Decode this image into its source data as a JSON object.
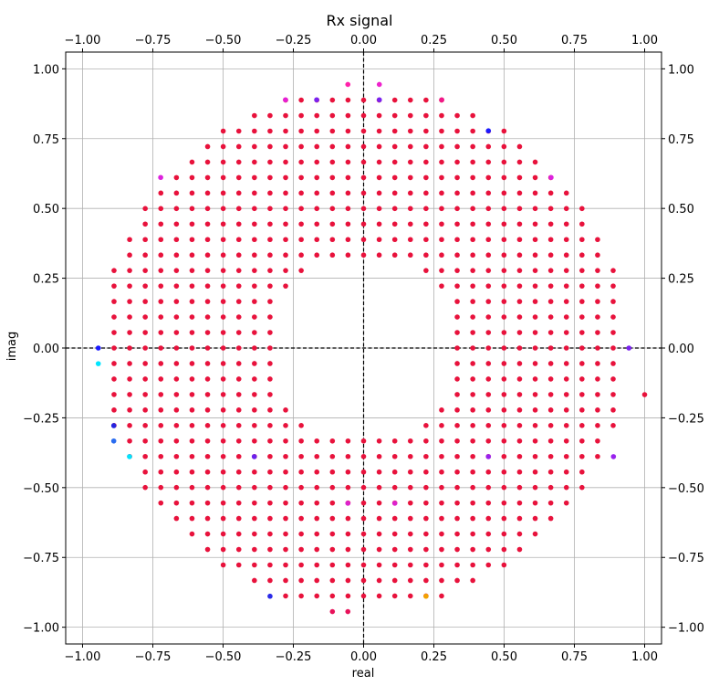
{
  "chart_data": {
    "type": "scatter",
    "title": "Rx signal",
    "xlabel": "real",
    "ylabel": "imag",
    "xlim": [
      -1.06,
      1.06
    ],
    "ylim": [
      -1.06,
      1.06
    ],
    "x_ticks": [
      -1.0,
      -0.75,
      -0.5,
      -0.25,
      0.0,
      0.25,
      0.5,
      0.75,
      1.0
    ],
    "y_ticks": [
      -1.0,
      -0.75,
      -0.5,
      -0.25,
      0.0,
      0.25,
      0.5,
      0.75,
      1.0
    ],
    "x_tick_labels": [
      "−1.00",
      "−0.75",
      "−0.50",
      "−0.25",
      "0.00",
      "0.25",
      "0.50",
      "0.75",
      "1.00"
    ],
    "y_tick_labels": [
      "−1.00",
      "−0.75",
      "−0.50",
      "−0.25",
      "0.00",
      "0.25",
      "0.50",
      "0.75",
      "1.00"
    ],
    "ticks_on_all_sides": true,
    "grid": true,
    "reference_lines": [
      {
        "orientation": "vertical",
        "value": 0.0,
        "style": "dashed",
        "color": "#000000"
      },
      {
        "orientation": "horizontal",
        "value": 0.0,
        "style": "dashed",
        "color": "#000000"
      }
    ],
    "grid_spacing": 0.0555,
    "ring": {
      "inner_radius": 0.33,
      "outer_radius": 0.94
    },
    "point_color_main": "#e8123c",
    "points": [
      {
        "x": -0.944,
        "y": 0.0,
        "color": "#1a1aff"
      },
      {
        "x": -0.944,
        "y": -0.056,
        "color": "#00e5ff"
      },
      {
        "x": -0.889,
        "y": -0.278,
        "color": "#2424e0"
      },
      {
        "x": -0.889,
        "y": -0.333,
        "color": "#2a6cf0"
      },
      {
        "x": -0.833,
        "y": -0.389,
        "color": "#00e5ff"
      },
      {
        "x": -0.333,
        "y": -0.889,
        "color": "#2a2ae8"
      },
      {
        "x": 0.222,
        "y": -0.889,
        "color": "#f2a200"
      },
      {
        "x": 0.444,
        "y": 0.778,
        "color": "#1a1aff"
      },
      {
        "x": -0.167,
        "y": 0.889,
        "color": "#7a22f0"
      },
      {
        "x": 0.056,
        "y": 0.889,
        "color": "#7a22f0"
      },
      {
        "x": 0.444,
        "y": -0.389,
        "color": "#9922ee"
      },
      {
        "x": -0.389,
        "y": -0.389,
        "color": "#6a22ee"
      },
      {
        "x": -0.056,
        "y": 0.944,
        "color": "#ff22aa"
      },
      {
        "x": 0.056,
        "y": 0.944,
        "color": "#ee22cc"
      },
      {
        "x": -0.278,
        "y": 0.889,
        "color": "#e61fd4"
      },
      {
        "x": 0.278,
        "y": 0.889,
        "color": "#f01888"
      },
      {
        "x": -0.111,
        "y": -0.944,
        "color": "#e8125a"
      },
      {
        "x": -0.056,
        "y": -0.944,
        "color": "#e8125a"
      },
      {
        "x": 1.0,
        "y": -0.167,
        "color": "#e8123c"
      },
      {
        "x": 0.944,
        "y": 0.0,
        "color": "#7a22f0"
      },
      {
        "x": -0.056,
        "y": -0.556,
        "color": "#dd22cc"
      },
      {
        "x": 0.111,
        "y": -0.556,
        "color": "#dd22cc"
      },
      {
        "x": 0.667,
        "y": 0.611,
        "color": "#dd22dd"
      },
      {
        "x": -0.722,
        "y": 0.611,
        "color": "#dd22dd"
      },
      {
        "x": 0.889,
        "y": -0.389,
        "color": "#9922ee"
      }
    ]
  }
}
